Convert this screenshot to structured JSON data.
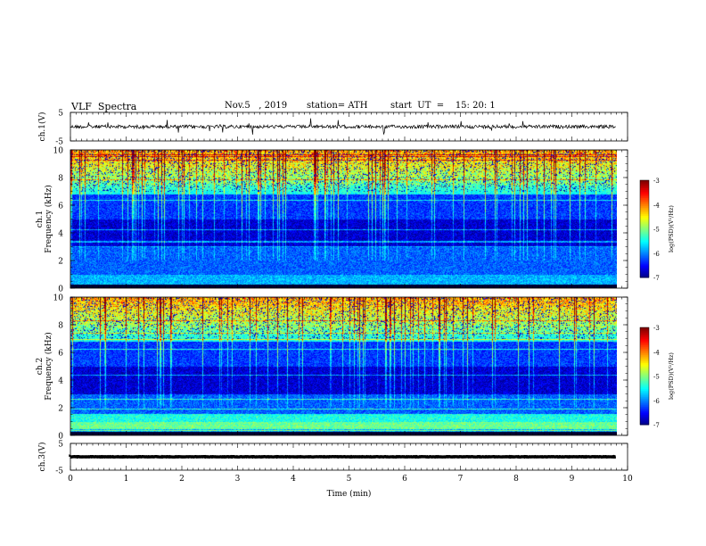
{
  "header": {
    "title": "VLF  Spectra",
    "date": "Nov.5   , 2019",
    "station": "station= ATH",
    "start": "start  UT  =    15: 20: 1"
  },
  "chart_data": [
    {
      "type": "line",
      "name": "ch1-waveform",
      "ylabel": "ch.1(V)",
      "ylim": [
        -5,
        5
      ],
      "yticks": [
        "5",
        "-5"
      ],
      "xlim": [
        0,
        10
      ],
      "x_end": 9.8,
      "baseline": 0,
      "amplitude": 1.2,
      "color": "#000000"
    },
    {
      "type": "heatmap",
      "name": "ch1-spectrogram",
      "ylabel": "ch.1\nFrequency  (kHz)",
      "ylim": [
        0,
        10
      ],
      "yticks": [
        "0",
        "2",
        "4",
        "6",
        "8",
        "10"
      ],
      "xlim": [
        0,
        10
      ],
      "x_end": 9.8,
      "colorbar": {
        "label": "log(PSD)(V²/Hz)",
        "range": [
          -7,
          -3
        ],
        "ticks": [
          "-3",
          "-4",
          "-5",
          "-6",
          "-7"
        ]
      }
    },
    {
      "type": "heatmap",
      "name": "ch2-spectrogram",
      "ylabel": "ch.2\nFrequency  (kHz)",
      "ylim": [
        0,
        10
      ],
      "yticks": [
        "0",
        "2",
        "4",
        "6",
        "8",
        "10"
      ],
      "xlim": [
        0,
        10
      ],
      "x_end": 9.8,
      "colorbar": {
        "label": "log(PSD)(V²/Hz)",
        "range": [
          -7,
          -3
        ],
        "ticks": [
          "-3",
          "-4",
          "-5",
          "-6",
          "-7"
        ]
      }
    },
    {
      "type": "line",
      "name": "ch3-waveform",
      "ylabel": "ch.3(V)",
      "ylim": [
        -5,
        5
      ],
      "yticks": [
        "5",
        "-5"
      ],
      "xlim": [
        0,
        10
      ],
      "x_end": 9.8,
      "baseline": 0,
      "amplitude": 0.15,
      "color": "#000000"
    }
  ],
  "xaxis": {
    "label": "Time  (min)",
    "ticks": [
      "0",
      "1",
      "2",
      "3",
      "4",
      "5",
      "6",
      "7",
      "8",
      "9",
      "10"
    ]
  }
}
